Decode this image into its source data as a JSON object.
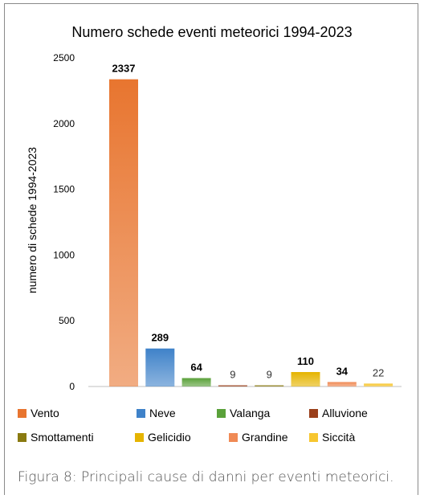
{
  "chart_data": {
    "type": "bar",
    "title": "Numero schede eventi meteorici 1994-2023",
    "xlabel": "",
    "ylabel": "numero di schede 1994-2023",
    "ylim": [
      0,
      2500
    ],
    "yticks": [
      "0",
      "500",
      "1000",
      "1500",
      "2000",
      "2500"
    ],
    "grid": false,
    "legend_position": "bottom",
    "categories": [
      "Vento",
      "Neve",
      "Valanga",
      "Alluvione",
      "Smottamenti",
      "Gelicidio",
      "Grandine",
      "Siccità"
    ],
    "values": [
      2337,
      289,
      64,
      9,
      9,
      110,
      34,
      22
    ],
    "labels": [
      "2337",
      "289",
      "64",
      "9",
      "9",
      "110",
      "34",
      "22"
    ],
    "colors": [
      "#e8752f",
      "#3f82c9",
      "#5aa13a",
      "#9a3f1a",
      "#8a7a10",
      "#e5b400",
      "#f08a55",
      "#f7c62f"
    ],
    "label_bold": [
      true,
      true,
      true,
      false,
      false,
      true,
      true,
      false
    ]
  },
  "legend": [
    {
      "label": "Vento",
      "color": "#e8752f"
    },
    {
      "label": "Neve",
      "color": "#3f82c9"
    },
    {
      "label": "Valanga",
      "color": "#5aa13a"
    },
    {
      "label": "Alluvione",
      "color": "#9a3f1a"
    },
    {
      "label": "Smottamenti",
      "color": "#8a7a10"
    },
    {
      "label": "Gelicidio",
      "color": "#e5b400"
    },
    {
      "label": "Grandine",
      "color": "#f08a55"
    },
    {
      "label": "Siccità",
      "color": "#f7c62f"
    }
  ],
  "caption": "Figura 8: Principali cause di danni per eventi meteorici."
}
